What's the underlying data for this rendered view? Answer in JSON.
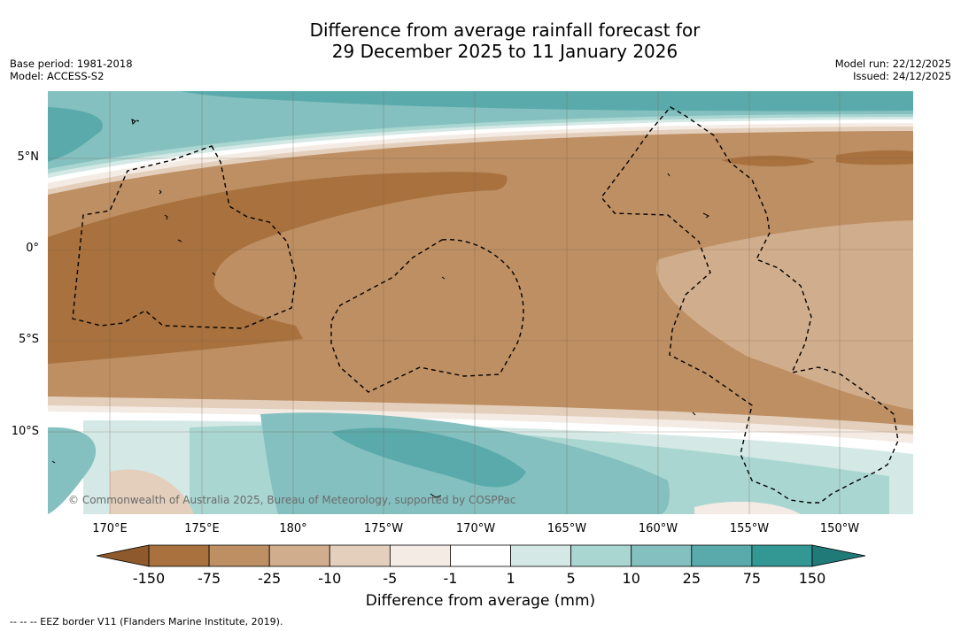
{
  "title": {
    "line1": "Difference from average rainfall forecast for",
    "line2": "29 December 2025 to 11 January 2026"
  },
  "meta_left": {
    "base_period": "Base period: 1981-2018",
    "model": "Model: ACCESS-S2"
  },
  "meta_right": {
    "model_run": "Model run: 22/12/2025",
    "issued": "Issued: 24/12/2025"
  },
  "map": {
    "copyright": "© Commonwealth of Australia 2025, Bureau of Meteorology, supported by COSPPac",
    "lat_labels": [
      "5°N",
      "0°",
      "5°S",
      "10°S"
    ],
    "lon_labels": [
      "170°E",
      "175°E",
      "180°",
      "175°W",
      "170°W",
      "165°W",
      "160°W",
      "155°W",
      "150°W"
    ],
    "region_colors": {
      "dry_150": "#a8713e",
      "dry_75": "#be8f63",
      "dry_25": "#d0ae8d",
      "dry_10": "#e3cfbb",
      "dry_5": "#f4ebe4",
      "neutral": "#ffffff",
      "wet_5": "#d4e9e6",
      "wet_10": "#aad6d2",
      "wet_25": "#84c0bf",
      "wet_75": "#5aaaab",
      "wet_150": "#339894"
    }
  },
  "colorbar": {
    "labels": [
      "-150",
      "-75",
      "-25",
      "-10",
      "-5",
      "-1",
      "1",
      "5",
      "10",
      "25",
      "75",
      "150"
    ],
    "colors": [
      "#a8713e",
      "#be8f63",
      "#d0ae8d",
      "#e3cfbb",
      "#f4ebe4",
      "#ffffff",
      "#d4e9e6",
      "#aad6d2",
      "#84c0bf",
      "#5aaaab",
      "#339894"
    ],
    "under_color": "#8e5a2b",
    "over_color": "#1f7a78",
    "title": "Difference from average (mm)"
  },
  "footnote": "--  --  -- EEZ border V11 (Flanders Marine Institute, 2019)."
}
